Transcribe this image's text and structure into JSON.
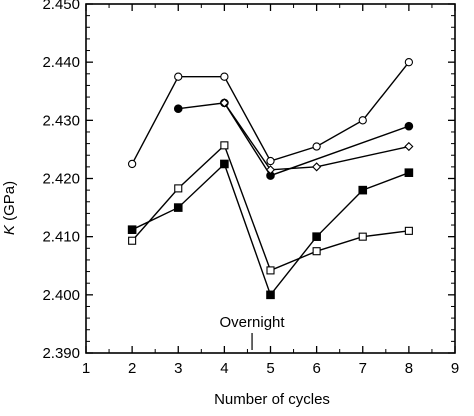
{
  "chart_data": {
    "type": "line",
    "title": "",
    "xlabel": "Number of cycles",
    "ylabel_italic": "K",
    "ylabel_rest": " (GPa)",
    "xlim": [
      1,
      9
    ],
    "ylim": [
      2.39,
      2.45
    ],
    "x_ticks": [
      1,
      2,
      3,
      4,
      5,
      6,
      7,
      8,
      9
    ],
    "x_tick_labels": [
      "1",
      "2",
      "3",
      "4",
      "5",
      "6",
      "7",
      "8",
      "9"
    ],
    "y_ticks": [
      2.39,
      2.4,
      2.41,
      2.42,
      2.43,
      2.44,
      2.45
    ],
    "y_tick_labels": [
      "2.390",
      "2.400",
      "2.410",
      "2.420",
      "2.430",
      "2.440",
      "2.450"
    ],
    "grid": false,
    "annotation": {
      "text": "Overnight",
      "x": 4.6
    },
    "series": [
      {
        "marker": "open-circle",
        "x": [
          2,
          3,
          4,
          5,
          6,
          7,
          8
        ],
        "y": [
          2.4225,
          2.4375,
          2.4375,
          2.423,
          2.4255,
          2.43,
          2.44
        ]
      },
      {
        "marker": "filled-circle",
        "x": [
          3,
          4,
          5,
          8
        ],
        "y": [
          2.432,
          2.433,
          2.4205,
          2.429
        ]
      },
      {
        "marker": "open-diamond",
        "x": [
          4,
          5,
          6,
          8
        ],
        "y": [
          2.433,
          2.4215,
          2.422,
          2.4255
        ]
      },
      {
        "marker": "filled-square",
        "x": [
          2,
          3,
          4,
          5,
          6,
          7,
          8
        ],
        "y": [
          2.4112,
          2.415,
          2.4225,
          2.4,
          2.41,
          2.418,
          2.421
        ]
      },
      {
        "marker": "open-square",
        "x": [
          2,
          3,
          4,
          5,
          6,
          7,
          8
        ],
        "y": [
          2.4093,
          2.4183,
          2.4257,
          2.4042,
          2.4075,
          2.41,
          2.411
        ]
      }
    ]
  }
}
